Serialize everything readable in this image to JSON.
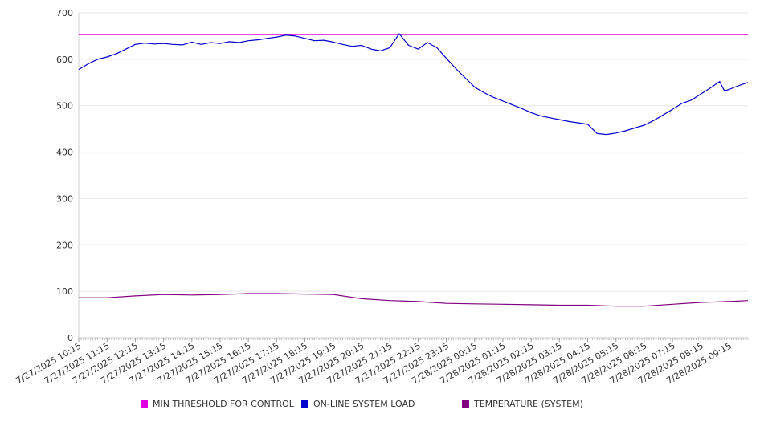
{
  "chart_data": {
    "type": "line",
    "title": "",
    "xlabel": "",
    "ylabel": "",
    "ylim": [
      0,
      700
    ],
    "yticks": [
      0,
      100,
      200,
      300,
      400,
      500,
      600,
      700
    ],
    "grid": true,
    "legend_position": "bottom",
    "x_range": [
      "2025-07-27 10:15",
      "2025-07-28 09:55"
    ],
    "x_tick_labels": [
      "7/27/2025 10:15",
      "7/27/2025 11:15",
      "7/27/2025 12:15",
      "7/27/2025 13:15",
      "7/27/2025 14:15",
      "7/27/2025 15:15",
      "7/27/2025 16:15",
      "7/27/2025 17:15",
      "7/27/2025 18:15",
      "7/27/2025 19:15",
      "7/27/2025 20:15",
      "7/27/2025 21:15",
      "7/27/2025 22:15",
      "7/27/2025 23:15",
      "7/28/2025 00:15",
      "7/28/2025 01:15",
      "7/28/2025 02:15",
      "7/28/2025 03:15",
      "7/28/2025 04:15",
      "7/28/2025 05:15",
      "7/28/2025 06:15",
      "7/28/2025 07:15",
      "7/28/2025 08:15",
      "7/28/2025 09:15"
    ],
    "series": [
      {
        "name": "MIN THRESHOLD FOR CONTROL",
        "color": "#e000e0",
        "points": [
          [
            "2025-07-27 10:15",
            653
          ],
          [
            "2025-07-28 09:55",
            653
          ]
        ]
      },
      {
        "name": "ON-LINE SYSTEM LOAD",
        "color": "#0000cc",
        "points": [
          [
            "2025-07-27 10:15",
            578
          ],
          [
            "2025-07-27 10:35",
            590
          ],
          [
            "2025-07-27 10:55",
            600
          ],
          [
            "2025-07-27 11:15",
            605
          ],
          [
            "2025-07-27 11:35",
            612
          ],
          [
            "2025-07-27 11:55",
            622
          ],
          [
            "2025-07-27 12:15",
            632
          ],
          [
            "2025-07-27 12:35",
            635
          ],
          [
            "2025-07-27 12:55",
            633
          ],
          [
            "2025-07-27 13:15",
            634
          ],
          [
            "2025-07-27 13:35",
            632
          ],
          [
            "2025-07-27 13:55",
            631
          ],
          [
            "2025-07-27 14:15",
            637
          ],
          [
            "2025-07-27 14:35",
            632
          ],
          [
            "2025-07-27 14:55",
            636
          ],
          [
            "2025-07-27 15:15",
            634
          ],
          [
            "2025-07-27 15:35",
            638
          ],
          [
            "2025-07-27 15:55",
            636
          ],
          [
            "2025-07-27 16:15",
            640
          ],
          [
            "2025-07-27 16:35",
            642
          ],
          [
            "2025-07-27 16:55",
            645
          ],
          [
            "2025-07-27 17:15",
            648
          ],
          [
            "2025-07-27 17:35",
            652
          ],
          [
            "2025-07-27 17:55",
            650
          ],
          [
            "2025-07-27 18:15",
            645
          ],
          [
            "2025-07-27 18:35",
            640
          ],
          [
            "2025-07-27 18:55",
            641
          ],
          [
            "2025-07-27 19:15",
            637
          ],
          [
            "2025-07-27 19:35",
            632
          ],
          [
            "2025-07-27 19:55",
            628
          ],
          [
            "2025-07-27 20:15",
            630
          ],
          [
            "2025-07-27 20:35",
            622
          ],
          [
            "2025-07-27 20:55",
            618
          ],
          [
            "2025-07-27 21:15",
            625
          ],
          [
            "2025-07-27 21:35",
            655
          ],
          [
            "2025-07-27 21:55",
            630
          ],
          [
            "2025-07-27 22:15",
            622
          ],
          [
            "2025-07-27 22:35",
            636
          ],
          [
            "2025-07-27 22:55",
            625
          ],
          [
            "2025-07-27 23:15",
            602
          ],
          [
            "2025-07-27 23:35",
            580
          ],
          [
            "2025-07-27 23:55",
            560
          ],
          [
            "2025-07-28 00:15",
            540
          ],
          [
            "2025-07-28 00:35",
            528
          ],
          [
            "2025-07-28 00:55",
            518
          ],
          [
            "2025-07-28 01:15",
            510
          ],
          [
            "2025-07-28 01:35",
            502
          ],
          [
            "2025-07-28 01:55",
            494
          ],
          [
            "2025-07-28 02:15",
            485
          ],
          [
            "2025-07-28 02:35",
            478
          ],
          [
            "2025-07-28 02:55",
            474
          ],
          [
            "2025-07-28 03:15",
            470
          ],
          [
            "2025-07-28 03:35",
            466
          ],
          [
            "2025-07-28 03:55",
            463
          ],
          [
            "2025-07-28 04:15",
            460
          ],
          [
            "2025-07-28 04:35",
            440
          ],
          [
            "2025-07-28 04:55",
            438
          ],
          [
            "2025-07-28 05:15",
            441
          ],
          [
            "2025-07-28 05:35",
            446
          ],
          [
            "2025-07-28 05:55",
            452
          ],
          [
            "2025-07-28 06:15",
            458
          ],
          [
            "2025-07-28 06:35",
            468
          ],
          [
            "2025-07-28 06:55",
            480
          ],
          [
            "2025-07-28 07:15",
            492
          ],
          [
            "2025-07-28 07:35",
            505
          ],
          [
            "2025-07-28 07:55",
            512
          ],
          [
            "2025-07-28 08:15",
            525
          ],
          [
            "2025-07-28 08:35",
            538
          ],
          [
            "2025-07-28 08:55",
            552
          ],
          [
            "2025-07-28 09:05",
            532
          ],
          [
            "2025-07-28 09:15",
            535
          ],
          [
            "2025-07-28 09:35",
            543
          ],
          [
            "2025-07-28 09:55",
            550
          ]
        ]
      },
      {
        "name": "TEMPERATURE (SYSTEM)",
        "color": "#800080",
        "points": [
          [
            "2025-07-27 10:15",
            86
          ],
          [
            "2025-07-27 11:15",
            86
          ],
          [
            "2025-07-27 12:15",
            90
          ],
          [
            "2025-07-27 13:15",
            93
          ],
          [
            "2025-07-27 14:15",
            92
          ],
          [
            "2025-07-27 15:15",
            93
          ],
          [
            "2025-07-27 16:15",
            95
          ],
          [
            "2025-07-27 17:15",
            95
          ],
          [
            "2025-07-27 18:15",
            94
          ],
          [
            "2025-07-27 19:15",
            93
          ],
          [
            "2025-07-27 20:15",
            84
          ],
          [
            "2025-07-27 21:15",
            80
          ],
          [
            "2025-07-27 22:15",
            78
          ],
          [
            "2025-07-27 23:15",
            74
          ],
          [
            "2025-07-28 00:15",
            73
          ],
          [
            "2025-07-28 01:15",
            72
          ],
          [
            "2025-07-28 02:15",
            71
          ],
          [
            "2025-07-28 03:15",
            70
          ],
          [
            "2025-07-28 04:15",
            70
          ],
          [
            "2025-07-28 05:15",
            68
          ],
          [
            "2025-07-28 06:15",
            68
          ],
          [
            "2025-07-28 07:15",
            72
          ],
          [
            "2025-07-28 08:15",
            76
          ],
          [
            "2025-07-28 09:15",
            78
          ],
          [
            "2025-07-28 09:55",
            80
          ]
        ]
      }
    ]
  }
}
